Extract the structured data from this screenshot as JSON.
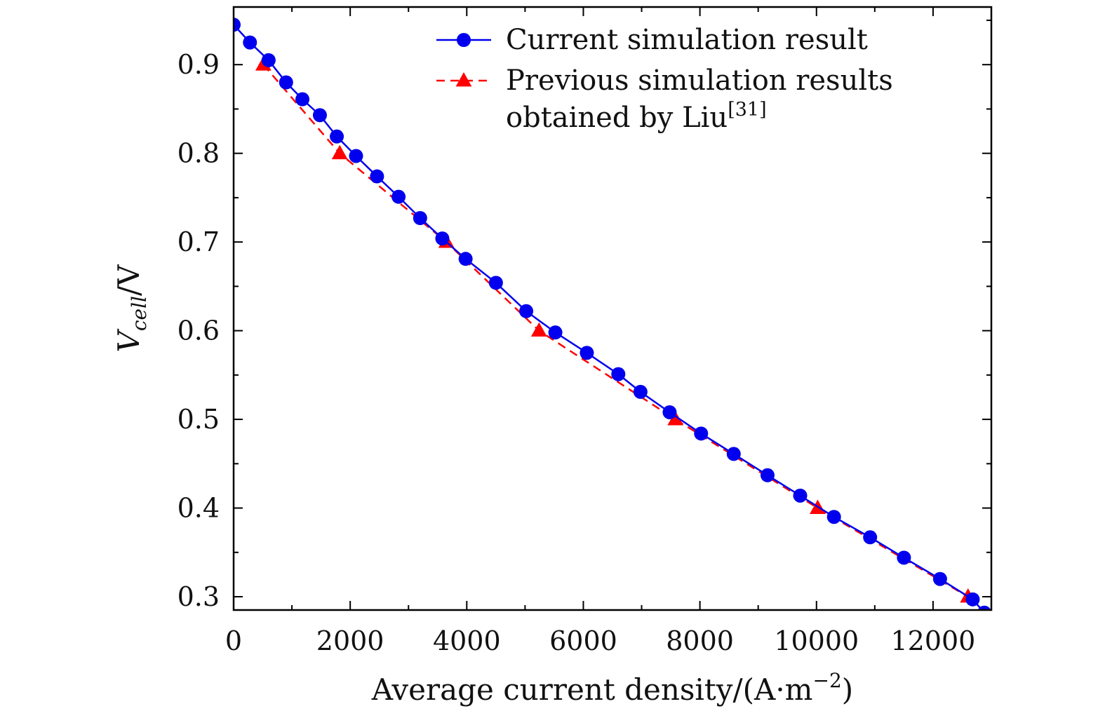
{
  "chart_data": {
    "type": "line",
    "title": "",
    "xlabel": "Average current density/(A·m⁻²)",
    "xlabel_parts": {
      "main": "Average current density/(A·m",
      "exponent": "−2",
      "tail": ")"
    },
    "ylabel": "Vcell/V",
    "ylabel_parts": {
      "symbol": "V",
      "subscript": "cell",
      "tail": "/V"
    },
    "xlim": [
      0,
      13000
    ],
    "ylim": [
      0.285,
      0.965
    ],
    "x_ticks": [
      0,
      2000,
      4000,
      6000,
      8000,
      10000,
      12000
    ],
    "x_tick_labels": [
      "0",
      "2000",
      "4000",
      "6000",
      "8000",
      "10000",
      "12000"
    ],
    "y_ticks": [
      0.3,
      0.4,
      0.5,
      0.6,
      0.7,
      0.8,
      0.9
    ],
    "y_tick_labels": [
      "0.3",
      "0.4",
      "0.5",
      "0.6",
      "0.7",
      "0.8",
      "0.9"
    ],
    "grid": false,
    "legend_position": "top-right",
    "series": [
      {
        "name": "Current simulation result",
        "color": "#0000ee",
        "line_style": "solid",
        "marker": "circle",
        "x": [
          0,
          280,
          600,
          900,
          1180,
          1480,
          1770,
          2100,
          2460,
          2830,
          3200,
          3580,
          3980,
          4500,
          5020,
          5520,
          6060,
          6600,
          6980,
          7480,
          8020,
          8580,
          9160,
          9720,
          10300,
          10920,
          11500,
          12120,
          12680,
          12880
        ],
        "y": [
          0.945,
          0.925,
          0.905,
          0.88,
          0.861,
          0.843,
          0.819,
          0.797,
          0.774,
          0.751,
          0.727,
          0.704,
          0.681,
          0.654,
          0.622,
          0.598,
          0.575,
          0.551,
          0.531,
          0.508,
          0.484,
          0.461,
          0.437,
          0.414,
          0.39,
          0.367,
          0.344,
          0.32,
          0.297,
          0.282
        ]
      },
      {
        "name": "Previous simulation results",
        "legend_lines": [
          "Previous simulation results",
          "obtained by Liu"
        ],
        "legend_citation": "[31]",
        "color": "#ff0000",
        "line_style": "dashed",
        "marker": "triangle",
        "x": [
          510,
          1820,
          3650,
          5240,
          7580,
          10020,
          12600
        ],
        "y": [
          0.9,
          0.8,
          0.7,
          0.6,
          0.5,
          0.4,
          0.3
        ]
      }
    ]
  }
}
